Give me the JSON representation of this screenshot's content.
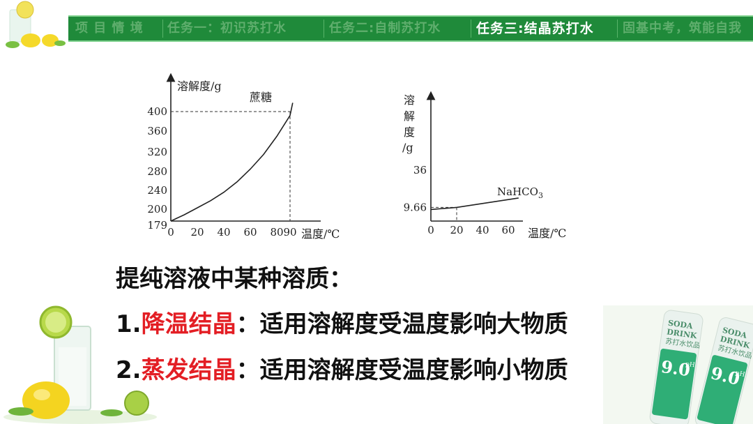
{
  "nav": {
    "tabs": [
      {
        "label": "项 目 情 境",
        "active": false
      },
      {
        "label": "任务一：初识苏打水",
        "active": false
      },
      {
        "label": "任务二:自制苏打水",
        "active": false
      },
      {
        "label": "任务三:结晶苏打水",
        "active": true
      },
      {
        "label": "固基中考，筑能自我",
        "active": false
      }
    ],
    "colors": {
      "bar": "#1f8a3a",
      "active_text": "#ffffff",
      "inactive_text": "#5fae6d"
    }
  },
  "chart_data": [
    {
      "type": "line",
      "ylabel": "溶解度/g",
      "xlabel": "温度/℃",
      "x_ticks": [
        "0",
        "20",
        "40",
        "60",
        "80",
        "90"
      ],
      "y_ticks": [
        "179",
        "200",
        "240",
        "280",
        "320",
        "360",
        "400"
      ],
      "series": [
        {
          "name": "蔗糖",
          "x": [
            0,
            10,
            20,
            30,
            40,
            50,
            60,
            70,
            80,
            90,
            92
          ],
          "y": [
            179,
            190,
            203,
            218,
            236,
            258,
            285,
            315,
            350,
            392,
            418
          ]
        }
      ],
      "dashed_reference": {
        "x": 90,
        "y": 400
      },
      "xlim": [
        0,
        95
      ],
      "ylim": [
        179,
        430
      ]
    },
    {
      "type": "line",
      "ylabel": "溶解度/g",
      "ylabel_chars": [
        "溶",
        "解",
        "度",
        "/g"
      ],
      "xlabel": "温度/℃",
      "x_ticks": [
        "0",
        "20",
        "40",
        "60"
      ],
      "y_ticks": [
        "9.66",
        "36"
      ],
      "series": [
        {
          "name": "NaHCO₃",
          "name_main": "NaHCO",
          "name_sub": "3",
          "x": [
            0,
            20,
            68
          ],
          "y": [
            8.2,
            9.66,
            16.3
          ]
        }
      ],
      "dashed_reference": {
        "x": 20,
        "y": 9.66
      },
      "xlim": [
        0,
        70
      ],
      "ylim": [
        0,
        68
      ]
    }
  ],
  "text": {
    "heading": "提纯溶液中某种溶质：",
    "item1": {
      "num": "1.",
      "method": "降温结晶",
      "desc": "：适用溶解度受温度影响大物质"
    },
    "item2": {
      "num": "2.",
      "method": "蒸发结晶",
      "desc": "：适用溶解度受温度影响小物质"
    }
  },
  "decor": {
    "bottle_label_1": "SODA",
    "bottle_label_2": "DRINK",
    "bottle_label_cn": "苏打水饮品",
    "bottle_ph": "9.0",
    "bottle_ph_unit": "pH"
  }
}
